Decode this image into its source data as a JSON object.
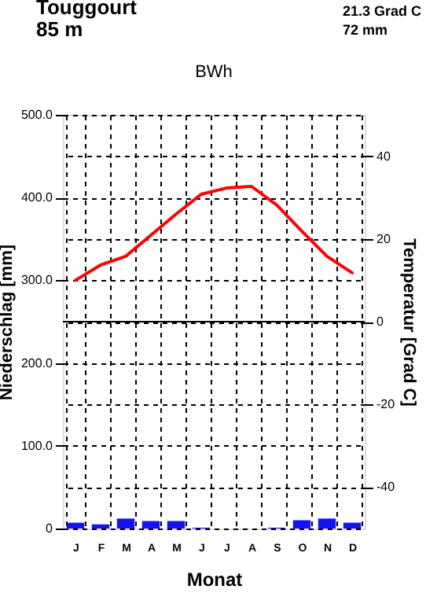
{
  "chart_data": {
    "type": "bar",
    "title": "BWh",
    "annotations": [
      "Touggourt",
      "85 m",
      "21.3 Grad C",
      "72 mm"
    ],
    "categories": [
      "J",
      "F",
      "M",
      "A",
      "M",
      "J",
      "J",
      "A",
      "S",
      "O",
      "N",
      "D"
    ],
    "xlabel": "Monat",
    "ylabel": "Niederschlag [mm]",
    "y2label": "Temperatur [Grad C]",
    "series": [
      {
        "color": "#1414f0",
        "values": [
          7,
          5,
          12,
          9,
          9,
          1,
          0,
          0,
          1,
          10,
          12,
          7
        ]
      },
      {
        "type": "line",
        "axis": "y2",
        "color": "#ff0000",
        "values": [
          10,
          13.7,
          15.8,
          20.9,
          26,
          30.8,
          32.3,
          32.7,
          28.2,
          21.9,
          15.8,
          11.8
        ]
      }
    ],
    "ylim": [
      0,
      500
    ],
    "yticks": [
      0,
      {
        "value": 100,
        "label": "100.0"
      },
      {
        "value": 200,
        "label": "200.0"
      },
      {
        "value": 300,
        "label": "300.0"
      },
      {
        "value": 400,
        "label": "400.0"
      },
      {
        "value": 500,
        "label": "500.0"
      }
    ],
    "y2lim": [
      -50,
      50
    ],
    "y2ticks": [
      -40,
      -20,
      0,
      20,
      40
    ],
    "ref_lines": [
      {
        "axis": "y2",
        "value": 0,
        "color": "#000000",
        "line_style": "solid"
      }
    ],
    "grid": true
  }
}
